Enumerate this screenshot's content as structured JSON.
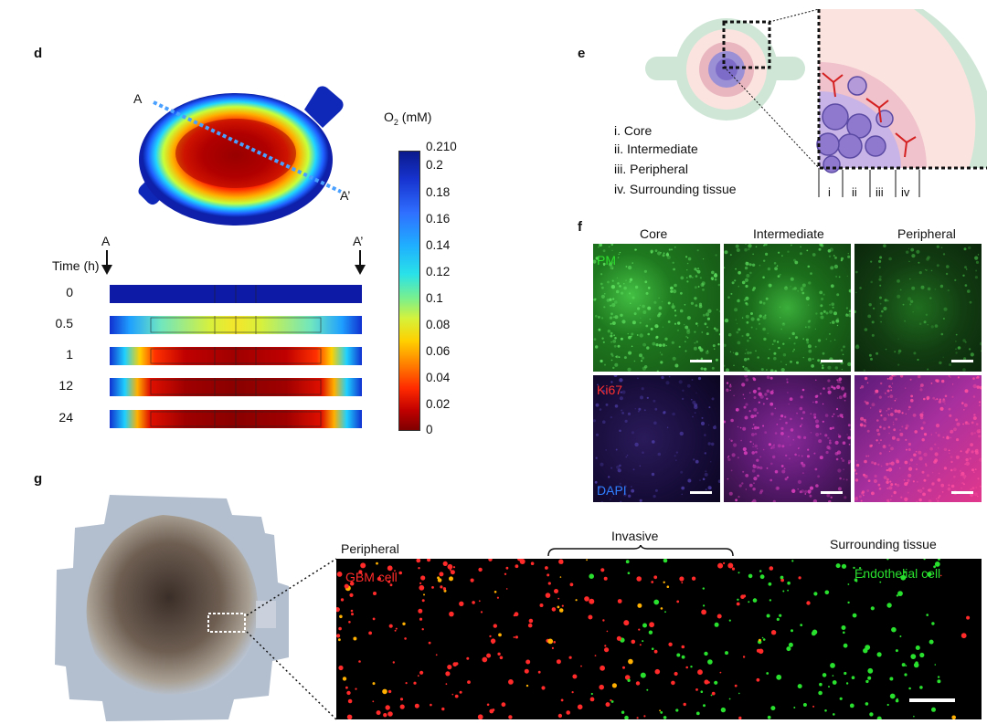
{
  "panels": {
    "d": "d",
    "e": "e",
    "f": "f",
    "g": "g"
  },
  "panel_d": {
    "point_a": "A",
    "point_a_prime": "A’",
    "colorbar_title_o": "O",
    "colorbar_title_sub": "2",
    "colorbar_title_unit": " (mM)",
    "colorbar_ticks": [
      "0.210",
      "0.2",
      "0.18",
      "0.16",
      "0.14",
      "0.12",
      "0.1",
      "0.08",
      "0.06",
      "0.04",
      "0.02",
      "0"
    ],
    "time_label": "Time (h)",
    "arrow_a": "A",
    "arrow_a_prime": "A’",
    "time_rows": [
      "0",
      "0.5",
      "1",
      "12",
      "24"
    ]
  },
  "panel_e": {
    "legend": [
      "i. Core",
      "ii. Intermediate",
      "iii. Peripheral",
      "iv. Surrounding tissue"
    ],
    "zone_labels": [
      "i",
      "ii",
      "iii",
      "iv"
    ]
  },
  "panel_f": {
    "columns": [
      "Core",
      "Intermediate",
      "Peripheral"
    ],
    "row1_marker": "PM",
    "row2_marker": "Ki67",
    "row2_counterstain": "DAPI"
  },
  "panel_g": {
    "label_peripheral": "Peripheral",
    "label_invasive": "Invasive",
    "label_surrounding": "Surrounding tissue",
    "label_gbm": "GBM cell",
    "label_endothelial": "Endothelial cell"
  },
  "colors": {
    "jet_low": "#7f0000",
    "jet_high": "#00007f",
    "pm_green": "#2fbf2f",
    "ki67_red": "#ff3030",
    "dapi_blue": "#2f6fff",
    "endothelial_green": "#29e02e",
    "gbm_red": "#ff2a2a"
  }
}
